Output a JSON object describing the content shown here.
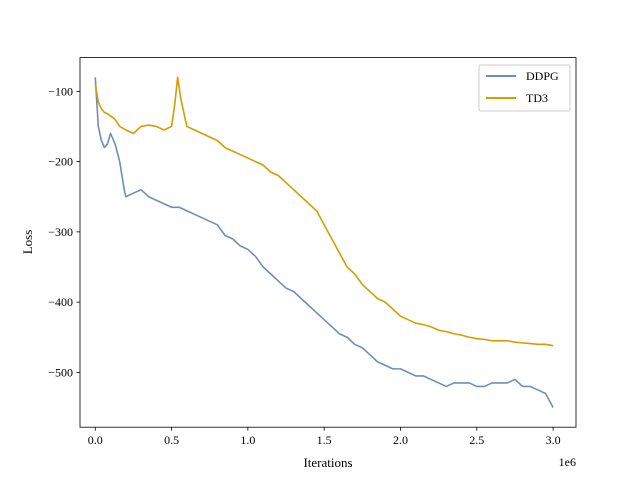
{
  "chart_data": {
    "type": "line",
    "title": "",
    "xlabel": "Iterations",
    "ylabel": "Loss",
    "x_scale_label": "1e6",
    "xlim": [
      -0.1,
      3.15
    ],
    "ylim": [
      -578,
      -52
    ],
    "xticks": [
      0.0,
      0.5,
      1.0,
      1.5,
      2.0,
      2.5,
      3.0
    ],
    "xtick_labels": [
      "0.0",
      "0.5",
      "1.0",
      "1.5",
      "2.0",
      "2.5",
      "3.0"
    ],
    "yticks": [
      -100,
      -200,
      -300,
      -400,
      -500
    ],
    "ytick_labels": [
      "−100",
      "−200",
      "−300",
      "−400",
      "−500"
    ],
    "legend": {
      "location": "top-right"
    },
    "series": [
      {
        "name": "DDPG",
        "color": "#6c8ebf",
        "x": [
          0.0,
          0.02,
          0.04,
          0.06,
          0.08,
          0.1,
          0.13,
          0.16,
          0.19,
          0.2,
          0.25,
          0.3,
          0.35,
          0.4,
          0.45,
          0.5,
          0.55,
          0.6,
          0.65,
          0.7,
          0.75,
          0.8,
          0.85,
          0.9,
          0.95,
          1.0,
          1.05,
          1.1,
          1.15,
          1.2,
          1.25,
          1.3,
          1.35,
          1.4,
          1.45,
          1.5,
          1.55,
          1.6,
          1.65,
          1.7,
          1.75,
          1.8,
          1.85,
          1.9,
          1.95,
          2.0,
          2.05,
          2.1,
          2.15,
          2.2,
          2.25,
          2.3,
          2.35,
          2.4,
          2.45,
          2.5,
          2.55,
          2.6,
          2.65,
          2.7,
          2.75,
          2.8,
          2.85,
          2.9,
          2.95,
          3.0
        ],
        "y": [
          -80,
          -150,
          -170,
          -180,
          -175,
          -160,
          -175,
          -200,
          -240,
          -250,
          -245,
          -240,
          -250,
          -255,
          -260,
          -265,
          -265,
          -270,
          -275,
          -280,
          -285,
          -290,
          -305,
          -310,
          -320,
          -325,
          -335,
          -350,
          -360,
          -370,
          -380,
          -385,
          -395,
          -405,
          -415,
          -425,
          -435,
          -445,
          -450,
          -460,
          -465,
          -475,
          -485,
          -490,
          -495,
          -495,
          -500,
          -505,
          -505,
          -510,
          -515,
          -520,
          -515,
          -515,
          -515,
          -520,
          -520,
          -515,
          -515,
          -515,
          -510,
          -520,
          -520,
          -525,
          -530,
          -550
        ]
      },
      {
        "name": "TD3",
        "color": "#d69c00",
        "x": [
          0.0,
          0.02,
          0.04,
          0.06,
          0.08,
          0.1,
          0.13,
          0.16,
          0.2,
          0.25,
          0.3,
          0.35,
          0.4,
          0.45,
          0.5,
          0.52,
          0.54,
          0.56,
          0.6,
          0.65,
          0.7,
          0.75,
          0.8,
          0.85,
          0.9,
          0.95,
          1.0,
          1.05,
          1.1,
          1.15,
          1.2,
          1.25,
          1.3,
          1.35,
          1.4,
          1.45,
          1.5,
          1.55,
          1.6,
          1.65,
          1.7,
          1.75,
          1.8,
          1.85,
          1.9,
          1.95,
          2.0,
          2.05,
          2.1,
          2.15,
          2.2,
          2.25,
          2.3,
          2.35,
          2.4,
          2.45,
          2.5,
          2.55,
          2.6,
          2.65,
          2.7,
          2.75,
          2.8,
          2.85,
          2.9,
          2.95,
          3.0
        ],
        "y": [
          -90,
          -115,
          -125,
          -130,
          -132,
          -135,
          -140,
          -150,
          -155,
          -160,
          -150,
          -148,
          -150,
          -155,
          -150,
          -120,
          -80,
          -110,
          -150,
          -155,
          -160,
          -165,
          -170,
          -180,
          -185,
          -190,
          -195,
          -200,
          -205,
          -215,
          -220,
          -230,
          -240,
          -250,
          -260,
          -270,
          -290,
          -310,
          -330,
          -350,
          -360,
          -375,
          -385,
          -395,
          -400,
          -410,
          -420,
          -425,
          -430,
          -432,
          -435,
          -440,
          -442,
          -445,
          -447,
          -450,
          -452,
          -453,
          -455,
          -455,
          -455,
          -457,
          -458,
          -459,
          -460,
          -460,
          -462
        ]
      }
    ]
  }
}
